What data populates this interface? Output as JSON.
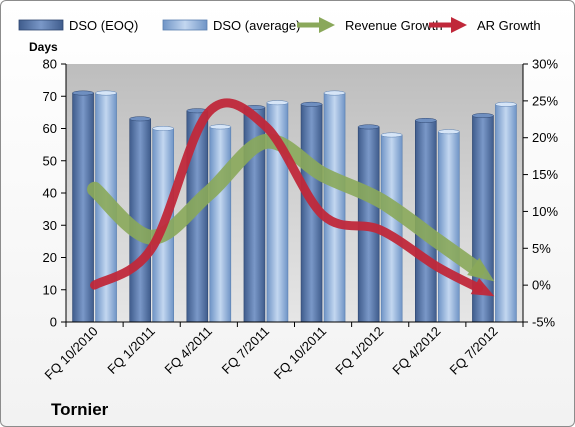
{
  "chart_data": {
    "type": "bar",
    "title": "",
    "company": "Tornier",
    "ylabel": "Days",
    "categories": [
      "FQ 10/2010",
      "FQ 1/2011",
      "FQ 4/2011",
      "FQ 7/2011",
      "FQ 10/2011",
      "FQ 1/2012",
      "FQ 4/2012",
      "FQ 7/2012"
    ],
    "ylim": [
      0,
      80
    ],
    "yticks": [
      0,
      10,
      20,
      30,
      40,
      50,
      60,
      70,
      80
    ],
    "y2lim": [
      -5,
      30
    ],
    "y2ticks": [
      "-5%",
      "0%",
      "5%",
      "10%",
      "15%",
      "20%",
      "25%",
      "30%"
    ],
    "y2tick_values": [
      -5,
      0,
      5,
      10,
      15,
      20,
      25,
      30
    ],
    "grid": false,
    "legend_position": "top",
    "series": [
      {
        "name": "DSO (EOQ)",
        "type": "bar",
        "axis": "left",
        "color": "#4f6fa0",
        "values": [
          71,
          63,
          65.5,
          66.5,
          67.5,
          60.5,
          62.5,
          64
        ]
      },
      {
        "name": "DSO (average)",
        "type": "bar",
        "axis": "left",
        "color": "#8fb2dd",
        "values": [
          71,
          60,
          60.5,
          68,
          71,
          58,
          59,
          67.5
        ]
      },
      {
        "name": "Revenue Growth",
        "type": "line",
        "axis": "right",
        "color": "#8aa85a",
        "values": [
          13,
          6.5,
          12.5,
          19.5,
          15,
          11.5,
          6,
          0.5
        ]
      },
      {
        "name": "AR Growth",
        "type": "line",
        "axis": "right",
        "color": "#c0283a",
        "values": [
          0,
          5,
          23.5,
          21.5,
          9.5,
          7.5,
          2.5,
          -1.5
        ]
      }
    ],
    "colors": {
      "plot_background": "#c8c8c8",
      "bar_eoq": "#4f6fa0",
      "bar_avg": "#8fb2dd",
      "revenue_growth": "#8aa85a",
      "ar_growth": "#c0283a"
    }
  }
}
